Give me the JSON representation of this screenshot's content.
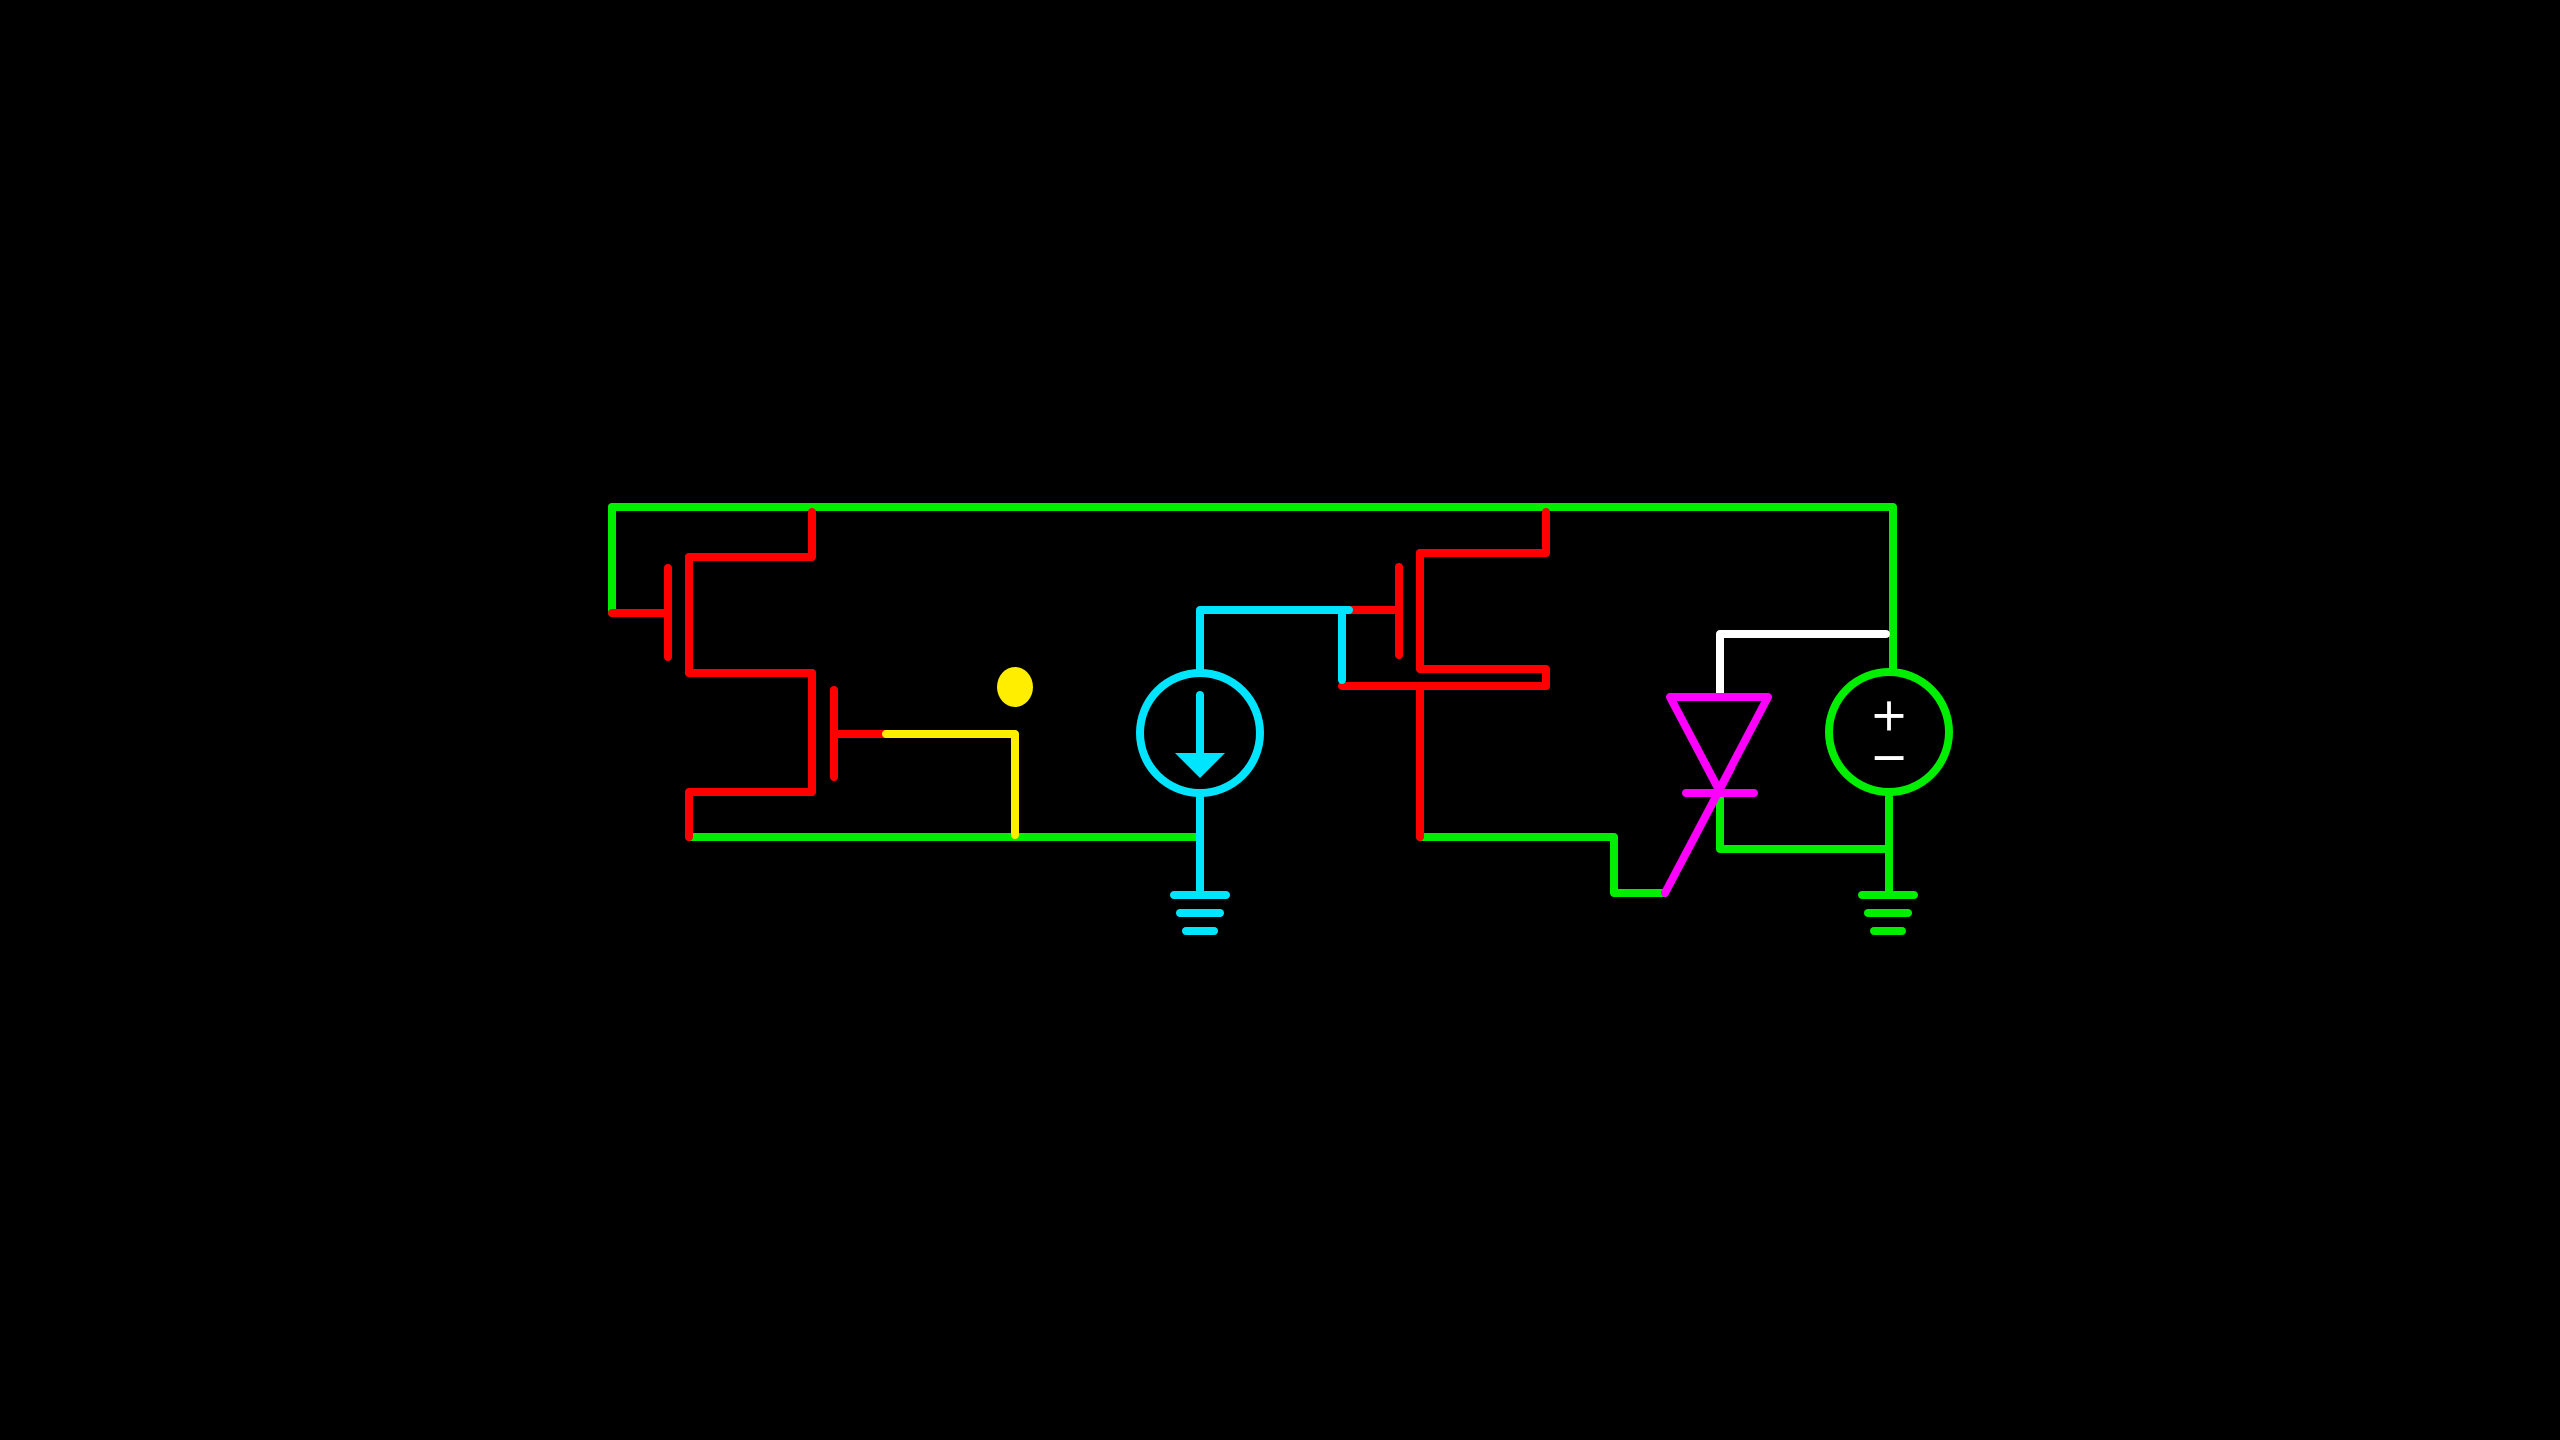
{
  "background": "#000000",
  "colors": {
    "supply_net": "#00ee00",
    "transistor": "#ff0000",
    "current_source_net": "#00e5ff",
    "gate_net": "#ffee00",
    "thyristor": "#ff00ff",
    "control_net": "#ffffff"
  },
  "components": [
    {
      "kind": "nmos",
      "name": "transistor-1"
    },
    {
      "kind": "nmos",
      "name": "transistor-2"
    },
    {
      "kind": "nmos",
      "name": "transistor-3"
    },
    {
      "kind": "current-source",
      "name": "current-source"
    },
    {
      "kind": "thyristor",
      "name": "thyristor"
    },
    {
      "kind": "voltage-source",
      "name": "voltage-source"
    },
    {
      "kind": "ground",
      "name": "ground-1"
    },
    {
      "kind": "ground",
      "name": "ground-2"
    },
    {
      "kind": "probe",
      "name": "probe-node"
    }
  ],
  "voltage_source": {
    "plus_label": "+",
    "minus_label": "−"
  }
}
